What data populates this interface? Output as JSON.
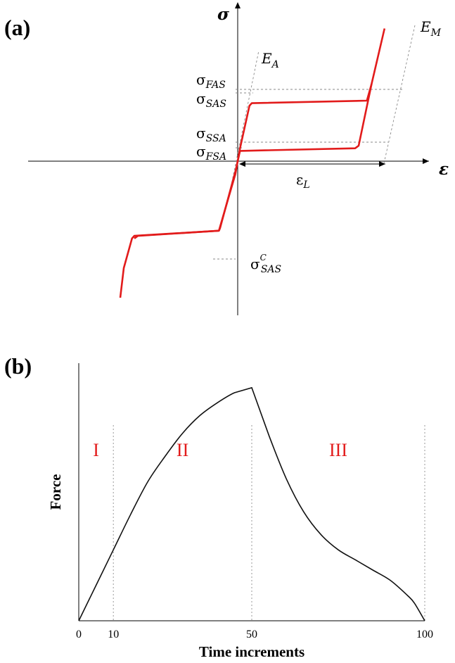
{
  "chart_data": [
    {
      "type": "line",
      "panel_label": "(a)",
      "axis_x_label": "ε",
      "axis_y_label": "σ",
      "annotations": {
        "E_A": {
          "base": "E",
          "sub": "A"
        },
        "E_M": {
          "base": "E",
          "sub": "M"
        },
        "sigma_FAS": {
          "base": "σ",
          "sub": "FAS"
        },
        "sigma_SAS": {
          "base": "σ",
          "sub": "SAS"
        },
        "sigma_SSA": {
          "base": "σ",
          "sub": "SSA"
        },
        "sigma_FSA": {
          "base": "σ",
          "sub": "FSA"
        },
        "sigma_SAS_C": {
          "base": "σ",
          "sub": "SAS",
          "sup": "C"
        },
        "eps_L": {
          "base": "ε",
          "sub": "L"
        }
      },
      "series": [
        {
          "x": [
            -1.0,
            -0.97,
            -0.9,
            -0.88,
            -0.16,
            -0.02,
            0,
            0.02,
            0.1,
            0.12,
            1.1,
            1.14,
            1.25
          ],
          "y": [
            -1.06,
            -0.83,
            -0.6,
            -0.58,
            -0.54,
            -0.1,
            0,
            0.1,
            0.43,
            0.45,
            0.47,
            0.6,
            1.03
          ]
        },
        {
          "x": [
            1.14,
            1.03,
            1.0,
            0.02,
            0,
            -0.02,
            -0.15,
            -0.16,
            -0.85,
            -0.88
          ],
          "y": [
            0.6,
            0.12,
            0.1,
            0.08,
            0,
            -0.08,
            -0.52,
            -0.54,
            -0.58,
            -0.6
          ]
        }
      ]
    },
    {
      "type": "line",
      "panel_label": "(b)",
      "xlabel": "Time increments",
      "ylabel": "Force",
      "x_ticks": [
        "0",
        "10",
        "50",
        "100"
      ],
      "regions": [
        {
          "label": "I",
          "x_start": 0,
          "x_end": 10
        },
        {
          "label": "II",
          "x_start": 10,
          "x_end": 50
        },
        {
          "label": "III",
          "x_start": 50,
          "x_end": 100
        }
      ],
      "region_boundaries": [
        10,
        50,
        100
      ],
      "xlim": [
        0,
        100
      ],
      "ylim": [
        0,
        1.0
      ],
      "series": [
        {
          "x": [
            0,
            5,
            10,
            15,
            20,
            25,
            30,
            35,
            40,
            45,
            50,
            55,
            60,
            65,
            70,
            75,
            80,
            85,
            90,
            95,
            97,
            100
          ],
          "y": [
            0,
            0.14,
            0.28,
            0.42,
            0.55,
            0.65,
            0.74,
            0.81,
            0.86,
            0.9,
            0.92,
            0.73,
            0.56,
            0.43,
            0.34,
            0.28,
            0.24,
            0.2,
            0.16,
            0.1,
            0.07,
            0
          ]
        }
      ]
    }
  ]
}
